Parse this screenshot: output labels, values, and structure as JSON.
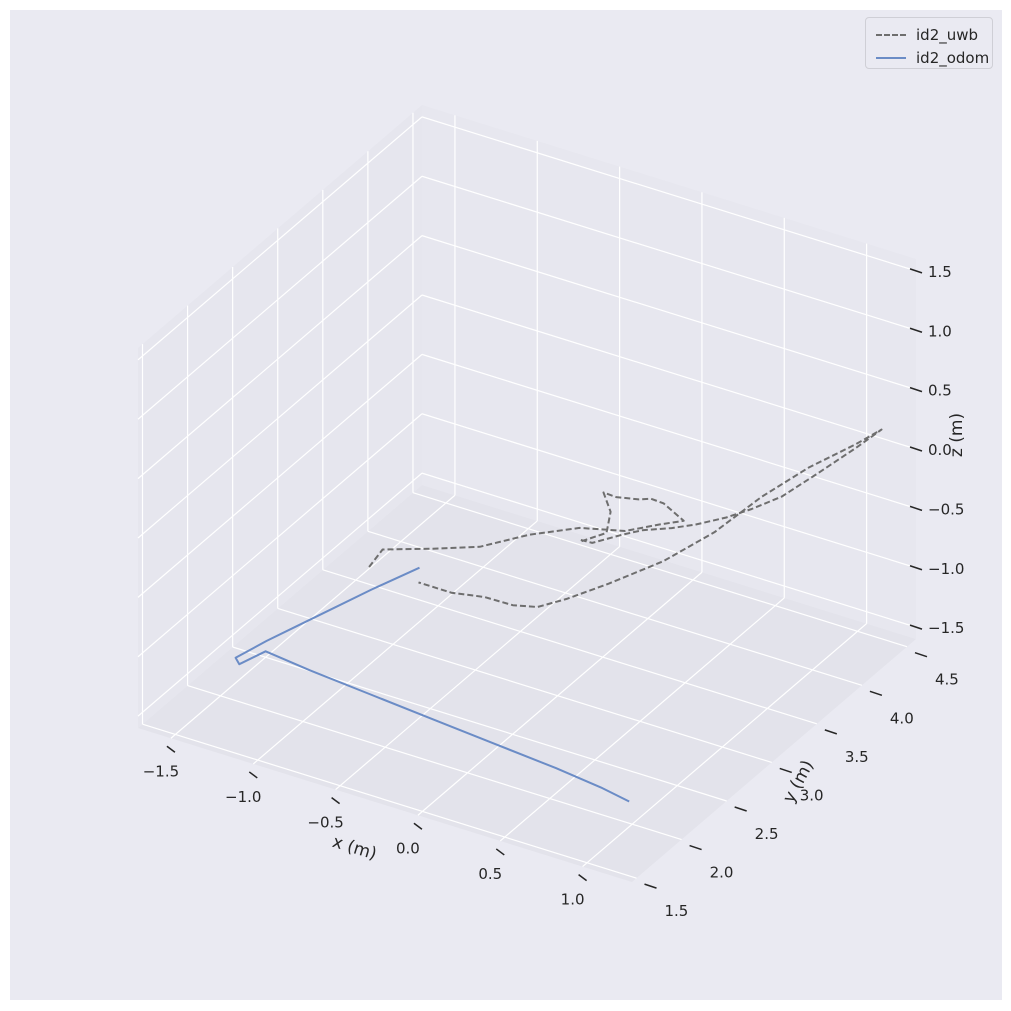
{
  "chart_data": {
    "type": "line",
    "dimensions": 3,
    "title": "",
    "xlabel": "x (m)",
    "ylabel": "y (m)",
    "zlabel": "z (m)",
    "xlim": [
      -1.7,
      1.3
    ],
    "ylim": [
      1.45,
      4.6
    ],
    "zlim": [
      -1.6,
      1.6
    ],
    "xticks": [
      "−1.5",
      "−1.0",
      "−0.5",
      "0.0",
      "0.5",
      "1.0"
    ],
    "yticks": [
      "1.5",
      "2.0",
      "2.5",
      "3.0",
      "3.5",
      "4.0",
      "4.5"
    ],
    "zticks": [
      "−1.5",
      "−1.0",
      "−0.5",
      "0.0",
      "0.5",
      "1.0",
      "1.5"
    ],
    "grid": true,
    "legend_position": "upper-right",
    "series": [
      {
        "name": "id2_uwb",
        "style": "dashed",
        "color": "#6e6e6e",
        "x": [
          -1.2,
          -1.2,
          -0.95,
          -0.72,
          -0.5,
          -0.25,
          0.0,
          0.18,
          0.3,
          0.15,
          0.1,
          0.08,
          0.0,
          -0.05,
          0.02,
          0.05,
          -0.05,
          0.0,
          0.1,
          0.25,
          0.35,
          0.5,
          0.62,
          0.75,
          0.85,
          0.95,
          1.05,
          1.15,
          1.2,
          1.1,
          0.95,
          0.8,
          0.65,
          0.45,
          0.2,
          0.0,
          -0.15,
          -0.3,
          -0.5,
          -0.7,
          -0.9
        ],
        "y": [
          3.1,
          3.25,
          3.35,
          3.45,
          3.6,
          3.7,
          3.75,
          3.8,
          3.85,
          3.9,
          3.85,
          3.75,
          3.65,
          3.6,
          3.55,
          3.45,
          3.35,
          3.25,
          3.2,
          3.25,
          3.3,
          3.35,
          3.4,
          3.5,
          3.6,
          3.75,
          3.95,
          4.2,
          4.4,
          4.3,
          4.05,
          3.8,
          3.55,
          3.35,
          3.2,
          3.1,
          3.05,
          3.05,
          3.1,
          3.1,
          3.1
        ],
        "z": [
          -1.1,
          -1.05,
          -1.0,
          -0.95,
          -0.85,
          -0.75,
          -0.7,
          -0.6,
          -0.55,
          -0.5,
          -0.45,
          -0.4,
          -0.35,
          -0.3,
          -0.4,
          -0.5,
          -0.55,
          -0.45,
          -0.4,
          -0.3,
          -0.25,
          -0.2,
          -0.15,
          -0.1,
          -0.05,
          0.0,
          0.1,
          0.2,
          0.25,
          0.15,
          0.05,
          -0.1,
          -0.3,
          -0.5,
          -0.7,
          -0.85,
          -0.95,
          -1.0,
          -1.05,
          -1.1,
          -1.1
        ]
      },
      {
        "name": "id2_odom",
        "style": "solid",
        "color": "#6b8cc6",
        "x": [
          -1.25,
          -1.35,
          -1.45,
          -1.55,
          -1.6,
          -1.55,
          -1.5,
          -1.2,
          -0.8,
          -0.4,
          0.0,
          0.4,
          0.7,
          0.9
        ],
        "y": [
          3.75,
          3.4,
          3.0,
          2.6,
          2.35,
          2.3,
          2.5,
          2.45,
          2.4,
          2.35,
          2.3,
          2.25,
          2.2,
          2.15
        ],
        "z": [
          -1.55,
          -1.55,
          -1.55,
          -1.55,
          -1.55,
          -1.55,
          -1.55,
          -1.55,
          -1.55,
          -1.55,
          -1.55,
          -1.55,
          -1.55,
          -1.55
        ]
      }
    ]
  }
}
